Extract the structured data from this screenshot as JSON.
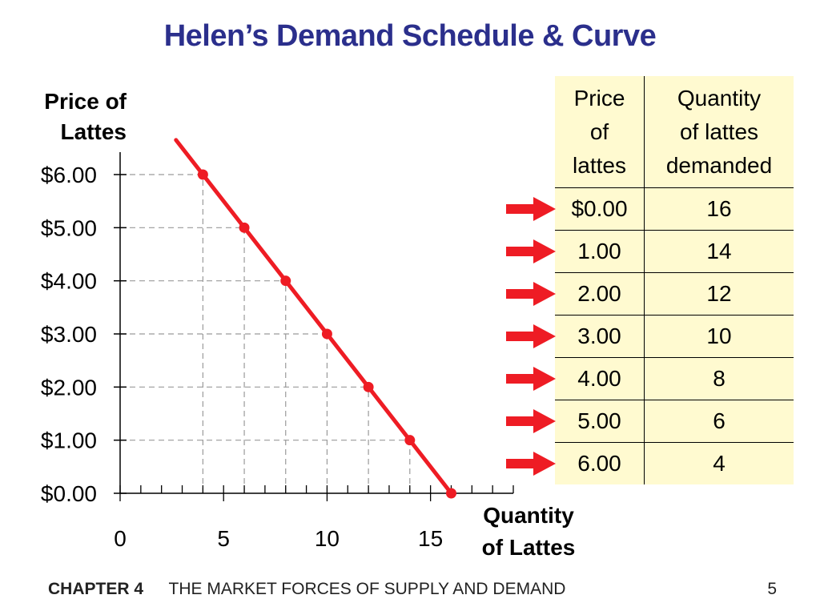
{
  "title": "Helen’s Demand Schedule & Curve",
  "chart_data": {
    "type": "line",
    "ylabel": [
      "Price of",
      "Lattes"
    ],
    "xlabel": [
      "Quantity",
      "of Lattes"
    ],
    "x_ticks": [
      "0",
      "5",
      "10",
      "15"
    ],
    "x_tick_values": [
      0,
      5,
      10,
      15
    ],
    "y_ticks": [
      "$0.00",
      "$1.00",
      "$2.00",
      "$3.00",
      "$4.00",
      "$5.00",
      "$6.00"
    ],
    "y_tick_values": [
      0,
      1,
      2,
      3,
      4,
      5,
      6
    ],
    "xlim": [
      0,
      19
    ],
    "ylim": [
      0,
      6
    ],
    "series": [
      {
        "points": [
          {
            "x": 4,
            "y": 6
          },
          {
            "x": 6,
            "y": 5
          },
          {
            "x": 8,
            "y": 4
          },
          {
            "x": 10,
            "y": 3
          },
          {
            "x": 12,
            "y": 2
          },
          {
            "x": 14,
            "y": 1
          },
          {
            "x": 16,
            "y": 0
          }
        ],
        "color": "#ee1c24"
      }
    ],
    "dashed_guides": true,
    "line_extends_to": {
      "x": 2.7,
      "y": 6.65
    }
  },
  "table": {
    "headers": [
      "Price of lattes",
      "Quantity of lattes demanded"
    ],
    "header_lines": [
      [
        "Price",
        "of",
        "lattes"
      ],
      [
        "Quantity",
        "of lattes",
        "demanded"
      ]
    ],
    "rows": [
      [
        "$0.00",
        "16"
      ],
      [
        "1.00",
        "14"
      ],
      [
        "2.00",
        "12"
      ],
      [
        "3.00",
        "10"
      ],
      [
        "4.00",
        "8"
      ],
      [
        "5.00",
        "6"
      ],
      [
        "6.00",
        "4"
      ]
    ],
    "background": "#fffad0"
  },
  "arrow_icon": "right-arrow-icon",
  "arrow_color": "#ee1c24",
  "footer": {
    "chapter": "CHAPTER 4",
    "subject": "THE MARKET FORCES OF SUPPLY AND DEMAND",
    "page": "5"
  }
}
